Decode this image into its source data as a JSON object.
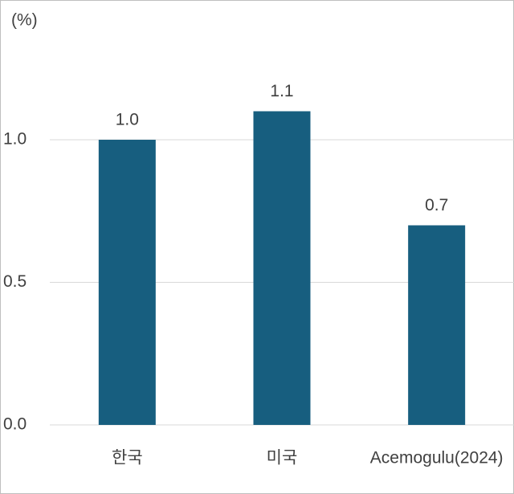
{
  "chart_data": {
    "type": "bar",
    "y_label": "(%)",
    "categories": [
      "한국",
      "미국",
      "Acemogulu(2024)"
    ],
    "values": [
      1.0,
      1.1,
      0.7
    ],
    "value_labels": [
      "1.0",
      "1.1",
      "0.7"
    ],
    "color": "#175e7f",
    "ylim": [
      0,
      1.4
    ],
    "yticks": [
      {
        "value": 0,
        "label": "0.0"
      },
      {
        "value": 0.5,
        "label": "0.5"
      },
      {
        "value": 1,
        "label": "1.0"
      }
    ],
    "grid": true
  }
}
